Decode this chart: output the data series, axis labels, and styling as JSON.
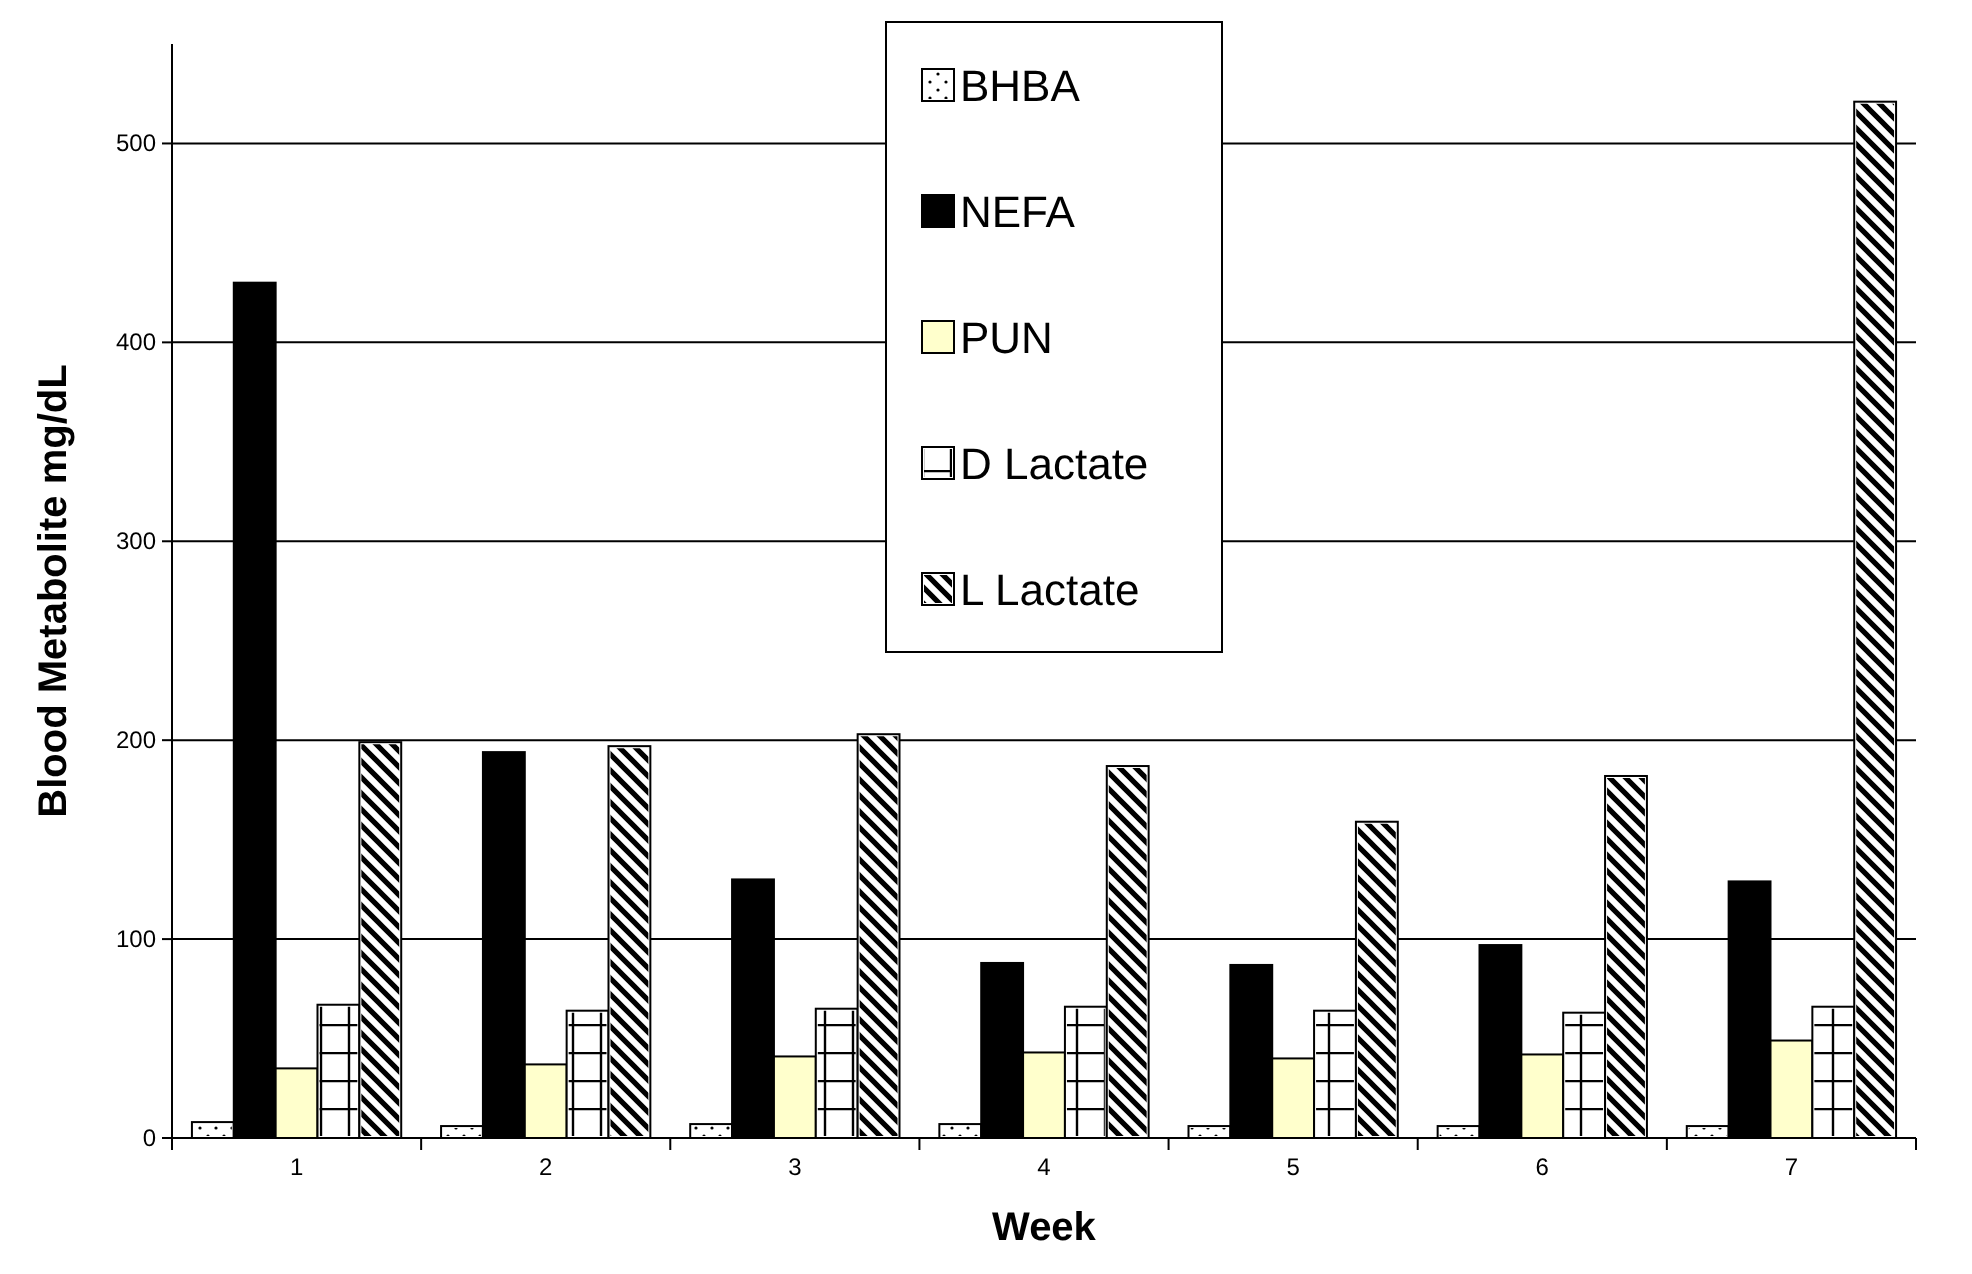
{
  "chart_data": {
    "type": "bar",
    "xlabel": "Week",
    "ylabel": "Blood Metabolite mg/dL",
    "categories": [
      "1",
      "2",
      "3",
      "4",
      "5",
      "6",
      "7"
    ],
    "series": [
      {
        "name": "BHBA",
        "color": "#ffffff",
        "values": [
          8,
          6,
          7,
          7,
          6,
          6,
          6
        ]
      },
      {
        "name": "NEFA",
        "color": "#000000",
        "values": [
          430,
          194,
          130,
          88,
          87,
          97,
          129
        ]
      },
      {
        "name": "PUN",
        "color": "#ffffcc",
        "values": [
          35,
          37,
          41,
          43,
          40,
          42,
          49
        ]
      },
      {
        "name": "D Lactate",
        "color": "#ffffff",
        "values": [
          67,
          64,
          65,
          66,
          64,
          63,
          66
        ]
      },
      {
        "name": "L Lactate",
        "color": "#ffffff",
        "values": [
          199,
          197,
          203,
          187,
          159,
          182,
          521
        ]
      }
    ],
    "ylim": [
      0,
      550
    ],
    "yticks": [
      0,
      100,
      200,
      300,
      400,
      500
    ],
    "grid": "y",
    "legend": "top"
  }
}
